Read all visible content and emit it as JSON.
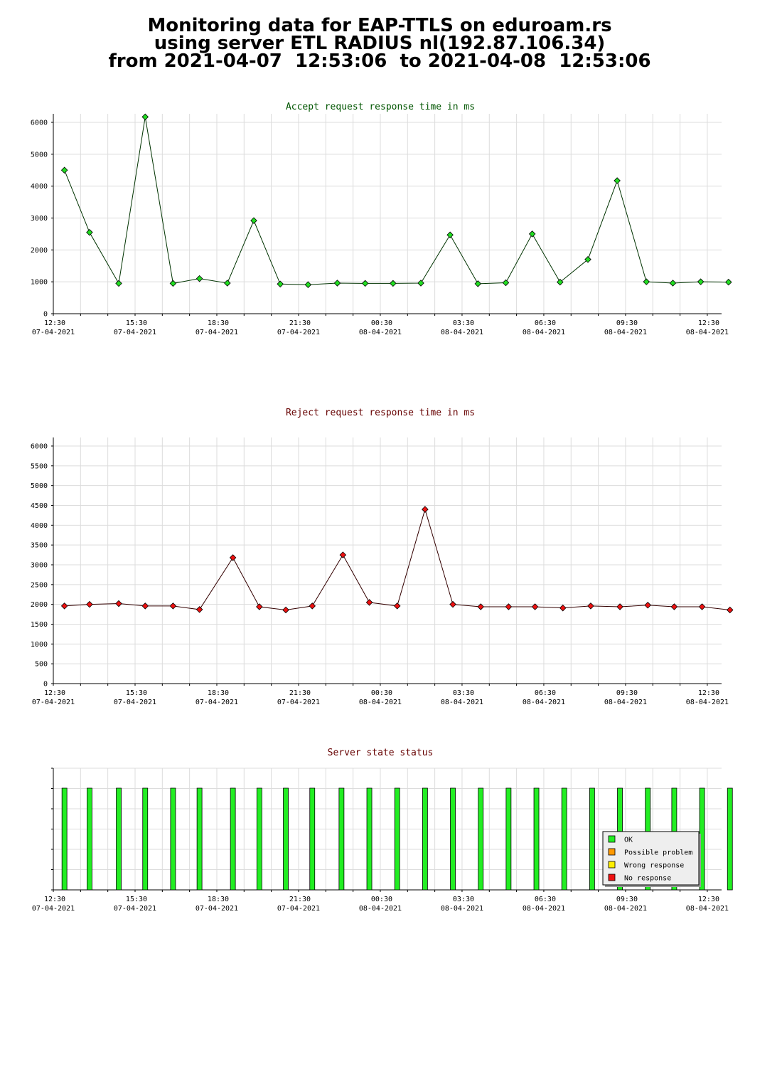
{
  "header": {
    "line1": "Monitoring data for EAP-TTLS on eduroam.rs",
    "line2": "using server ETL RADIUS nl(192.87.106.34)",
    "line3": "from 2021-04-07  12:53:06  to 2021-04-08  12:53:06"
  },
  "colors": {
    "accept_point": "#22dd22",
    "accept_line": "#003300",
    "reject_point": "#ee1111",
    "reject_line": "#330000",
    "status_ok": "#22ee22",
    "grid": "#dcdcdc",
    "legend_bg": "#eeeeee",
    "accept_title": "#005500",
    "reject_title": "#660000"
  },
  "chart_data": [
    {
      "type": "line",
      "title": "Accept request response time in ms",
      "xlabel": "",
      "ylabel": "",
      "ylim": [
        0,
        6000
      ],
      "yticks": [
        "0",
        "1000",
        "2000",
        "3000",
        "4000",
        "5000",
        "6000"
      ],
      "xticks": [
        {
          "time": "12:30",
          "date": "07-04-2021"
        },
        {
          "time": "15:30",
          "date": "07-04-2021"
        },
        {
          "time": "18:30",
          "date": "07-04-2021"
        },
        {
          "time": "21:30",
          "date": "07-04-2021"
        },
        {
          "time": "00:30",
          "date": "08-04-2021"
        },
        {
          "time": "03:30",
          "date": "08-04-2021"
        },
        {
          "time": "06:30",
          "date": "08-04-2021"
        },
        {
          "time": "09:30",
          "date": "08-04-2021"
        },
        {
          "time": "12:30",
          "date": "08-04-2021"
        }
      ],
      "grid": true,
      "x": [
        12.9,
        13.8,
        14.85,
        15.8,
        16.8,
        17.75,
        18.75,
        19.7,
        20.65,
        21.65,
        22.7,
        23.7,
        24.7,
        25.7,
        26.75,
        27.75,
        28.75,
        29.7,
        30.7,
        31.7,
        32.75,
        33.8,
        34.75,
        35.75,
        36.75
      ],
      "values": [
        4500,
        2550,
        950,
        6170,
        950,
        1100,
        960,
        2920,
        930,
        910,
        960,
        950,
        950,
        960,
        2470,
        940,
        970,
        2500,
        990,
        1700,
        4170,
        1000,
        960,
        1000,
        990
      ]
    },
    {
      "type": "line",
      "title": "Reject request response time in ms",
      "xlabel": "",
      "ylabel": "",
      "ylim": [
        0,
        6000
      ],
      "yticks": [
        "0",
        "500",
        "1000",
        "1500",
        "2000",
        "2500",
        "3000",
        "3500",
        "4000",
        "4500",
        "5000",
        "5500",
        "6000"
      ],
      "xticks": [
        {
          "time": "12:30",
          "date": "07-04-2021"
        },
        {
          "time": "15:30",
          "date": "07-04-2021"
        },
        {
          "time": "18:30",
          "date": "07-04-2021"
        },
        {
          "time": "21:30",
          "date": "07-04-2021"
        },
        {
          "time": "00:30",
          "date": "08-04-2021"
        },
        {
          "time": "03:30",
          "date": "08-04-2021"
        },
        {
          "time": "06:30",
          "date": "08-04-2021"
        },
        {
          "time": "09:30",
          "date": "08-04-2021"
        },
        {
          "time": "12:30",
          "date": "08-04-2021"
        }
      ],
      "grid": true,
      "x": [
        12.9,
        13.8,
        14.85,
        15.8,
        16.8,
        17.75,
        18.95,
        19.9,
        20.85,
        21.8,
        22.9,
        23.85,
        24.85,
        25.85,
        26.85,
        27.85,
        28.85,
        29.8,
        30.8,
        31.8,
        32.85,
        33.85,
        34.8,
        35.8,
        36.8
      ],
      "values": [
        1960,
        2000,
        2020,
        1960,
        1960,
        1870,
        3180,
        1940,
        1860,
        1960,
        3250,
        2050,
        1960,
        4400,
        2000,
        1940,
        1940,
        1940,
        1910,
        1960,
        1940,
        1980,
        1940,
        1940,
        1860
      ]
    },
    {
      "type": "bar",
      "title": "Server state status",
      "xlabel": "",
      "ylabel": "",
      "xticks": [
        {
          "time": "12:30",
          "date": "07-04-2021"
        },
        {
          "time": "15:30",
          "date": "07-04-2021"
        },
        {
          "time": "18:30",
          "date": "07-04-2021"
        },
        {
          "time": "21:30",
          "date": "07-04-2021"
        },
        {
          "time": "00:30",
          "date": "08-04-2021"
        },
        {
          "time": "03:30",
          "date": "08-04-2021"
        },
        {
          "time": "06:30",
          "date": "08-04-2021"
        },
        {
          "time": "09:30",
          "date": "08-04-2021"
        },
        {
          "time": "12:30",
          "date": "08-04-2021"
        }
      ],
      "grid": true,
      "legend_position": "bottom-right",
      "legend": [
        {
          "label": "OK",
          "color": "#22ee22"
        },
        {
          "label": "Possible problem",
          "color": "#ff9900"
        },
        {
          "label": "Wrong response",
          "color": "#ffee00"
        },
        {
          "label": "No response",
          "color": "#ee1111"
        }
      ],
      "x": [
        12.9,
        13.8,
        14.85,
        15.8,
        16.8,
        17.75,
        18.95,
        19.9,
        20.85,
        21.8,
        22.85,
        23.85,
        24.85,
        25.85,
        26.85,
        27.85,
        28.85,
        29.85,
        30.85,
        31.85,
        32.85,
        33.85,
        34.8,
        35.8,
        36.8
      ],
      "states": [
        "OK",
        "OK",
        "OK",
        "OK",
        "OK",
        "OK",
        "OK",
        "OK",
        "OK",
        "OK",
        "OK",
        "OK",
        "OK",
        "OK",
        "OK",
        "OK",
        "OK",
        "OK",
        "OK",
        "OK",
        "OK",
        "OK",
        "OK",
        "OK",
        "OK"
      ]
    }
  ]
}
